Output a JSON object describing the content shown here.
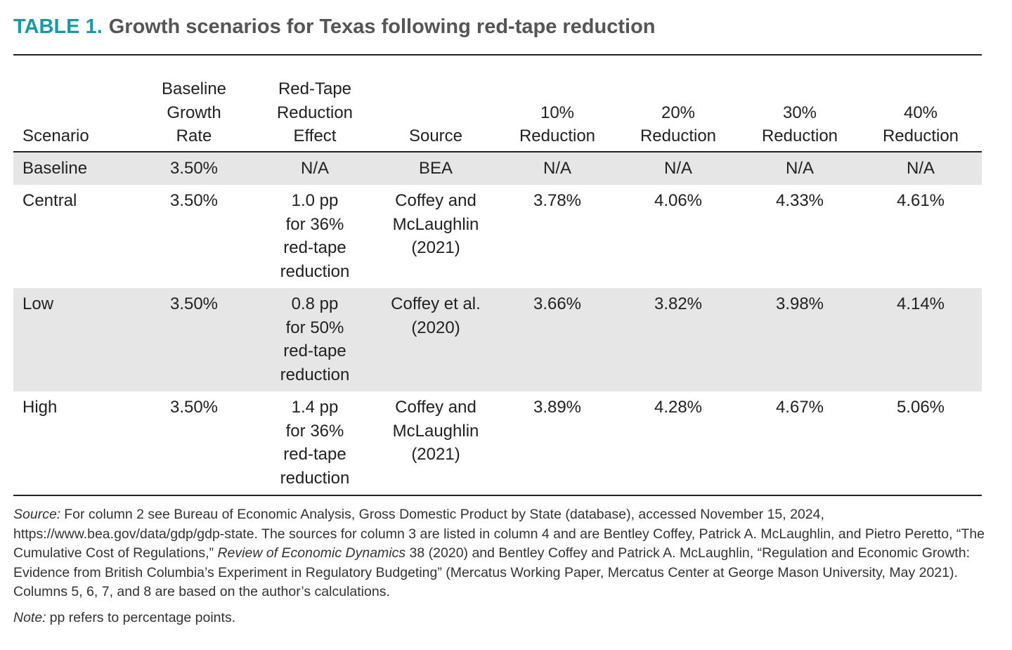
{
  "title": {
    "label": "TABLE 1.",
    "text": "Growth scenarios for Texas following red-tape reduction"
  },
  "table": {
    "header": [
      [
        "Scenario"
      ],
      [
        "Baseline",
        "Growth",
        "Rate"
      ],
      [
        "Red-Tape",
        "Reduction",
        "Effect"
      ],
      [
        "Source"
      ],
      [
        "10%",
        "Reduction"
      ],
      [
        "20%",
        "Reduction"
      ],
      [
        "30%",
        "Reduction"
      ],
      [
        "40%",
        "Reduction"
      ]
    ],
    "rows": [
      [
        [
          "Baseline"
        ],
        [
          "3.50%"
        ],
        [
          "N/A"
        ],
        [
          "BEA"
        ],
        [
          "N/A"
        ],
        [
          "N/A"
        ],
        [
          "N/A"
        ],
        [
          "N/A"
        ]
      ],
      [
        [
          "Central"
        ],
        [
          "3.50%"
        ],
        [
          "1.0 pp",
          "for 36%",
          "red-tape",
          "reduction"
        ],
        [
          "Coffey and",
          "McLaughlin",
          "(2021)"
        ],
        [
          "3.78%"
        ],
        [
          "4.06%"
        ],
        [
          "4.33%"
        ],
        [
          "4.61%"
        ]
      ],
      [
        [
          "Low"
        ],
        [
          "3.50%"
        ],
        [
          "0.8 pp",
          "for 50%",
          "red-tape",
          "reduction"
        ],
        [
          "Coffey et al.",
          "(2020)"
        ],
        [
          "3.66%"
        ],
        [
          "3.82%"
        ],
        [
          "3.98%"
        ],
        [
          "4.14%"
        ]
      ],
      [
        [
          "High"
        ],
        [
          "3.50%"
        ],
        [
          "1.4 pp",
          "for 36%",
          "red-tape",
          "reduction"
        ],
        [
          "Coffey and",
          "McLaughlin",
          "(2021)"
        ],
        [
          "3.89%"
        ],
        [
          "4.28%"
        ],
        [
          "4.67%"
        ],
        [
          "5.06%"
        ]
      ]
    ]
  },
  "source": {
    "label": "Source:",
    "parts": [
      "For column 2 see Bureau of Economic Analysis, Gross Domestic Product by State (database), accessed November 15, 2024, https://www.bea.gov/data/gdp/gdp-state. The sources for column 3 are listed in column 4 and are Bentley Coffey, Patrick A. McLaughlin, and Pietro Peretto, “The Cumulative Cost of Regulations,” ",
      "Review of Economic Dynamics",
      " 38 (2020) and Bentley Coffey and Patrick A. McLaughlin, “Regulation and Economic Growth: Evidence from British Columbia’s Experiment in Regulatory Budgeting” (Mercatus Working Paper, Mercatus Center at George Mason University, May 2021). Columns 5, 6, 7, and 8 are based on the author’s calculations."
    ]
  },
  "note": {
    "label": "Note:",
    "text": "pp refers to percentage points."
  }
}
